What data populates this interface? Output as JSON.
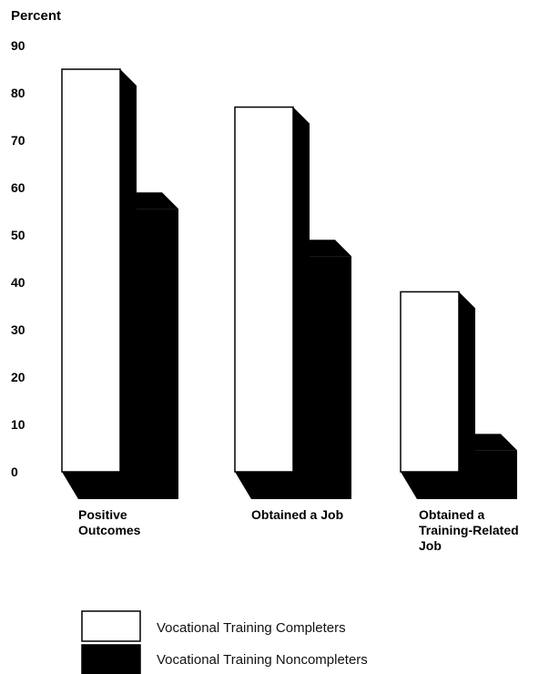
{
  "chart_data": {
    "type": "bar",
    "ylabel": "Percent",
    "ylim": [
      0,
      90
    ],
    "yticks": [
      "90",
      "80",
      "70",
      "60",
      "50",
      "40",
      "30",
      "20",
      "10",
      "0"
    ],
    "categories": [
      [
        "Positive",
        "Outcomes"
      ],
      [
        "Obtained a Job"
      ],
      [
        "Obtained a",
        "Training-Related",
        "Job"
      ]
    ],
    "series": [
      {
        "name": "Vocational Training Completers",
        "values": [
          85,
          77,
          38
        ],
        "color": "#ffffff"
      },
      {
        "name": "Vocational Training Noncompleters",
        "values": [
          59,
          49,
          8
        ],
        "color": "#000000"
      }
    ],
    "legend_position": "bottom-left",
    "grid": false,
    "style": "3d"
  }
}
